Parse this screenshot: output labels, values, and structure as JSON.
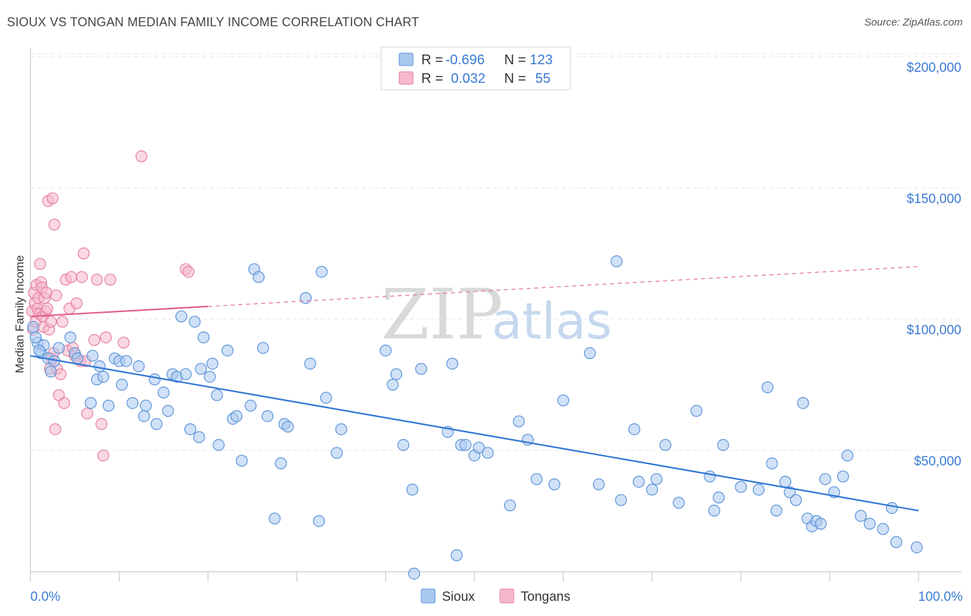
{
  "header": {
    "title": "SIOUX VS TONGAN MEDIAN FAMILY INCOME CORRELATION CHART",
    "source": "Source: ZipAtlas.com"
  },
  "watermark": {
    "zip": "ZIP",
    "atlas": "atlas"
  },
  "colors": {
    "sioux_fill": "#a9c8f0",
    "sioux_stroke": "#5b93d8",
    "sioux_line": "#2f76d2",
    "tongans_fill": "#f5b8ca",
    "tongans_stroke": "#e67ea0",
    "tongans_line": "#e0608c",
    "grid": "#e4e4e4",
    "tick_text": "#3a7bd5"
  },
  "legend": {
    "rows": [
      {
        "r_label": "R =",
        "r_value": "-0.696",
        "n_label": "N =",
        "n_value": "123"
      },
      {
        "r_label": "R =",
        "r_value": "0.032",
        "n_label": "N =",
        "n_value": "55"
      }
    ]
  },
  "bottom_legend": {
    "sioux": "Sioux",
    "tongans": "Tongans"
  },
  "chart_data": {
    "type": "scatter",
    "title": "SIOUX VS TONGAN MEDIAN FAMILY INCOME CORRELATION CHART",
    "xlabel": "",
    "ylabel": "Median Family Income",
    "xlim": [
      0,
      100
    ],
    "ylim": [
      0,
      210000
    ],
    "x_tick_labels": [
      "0.0%",
      "100.0%"
    ],
    "y_ticks": [
      50000,
      100000,
      150000,
      200000
    ],
    "y_tick_labels": [
      "$50,000",
      "$100,000",
      "$150,000",
      "$200,000"
    ],
    "series": [
      {
        "name": "Sioux",
        "r": -0.696,
        "n": 123,
        "trend": {
          "x": [
            0,
            100
          ],
          "y": [
            86000,
            27000
          ],
          "style": "solid"
        },
        "points": [
          [
            0.3,
            97000
          ],
          [
            0.8,
            91000
          ],
          [
            1.2,
            87000
          ],
          [
            1.5,
            90000
          ],
          [
            2.0,
            85000
          ],
          [
            2.3,
            80000
          ],
          [
            2.7,
            84000
          ],
          [
            3.2,
            89000
          ],
          [
            4.5,
            93000
          ],
          [
            5.0,
            87000
          ],
          [
            5.3,
            85000
          ],
          [
            6.8,
            68000
          ],
          [
            7.0,
            86000
          ],
          [
            7.5,
            77000
          ],
          [
            7.8,
            82000
          ],
          [
            8.2,
            78000
          ],
          [
            8.8,
            67000
          ],
          [
            9.5,
            85000
          ],
          [
            10.0,
            84000
          ],
          [
            10.3,
            75000
          ],
          [
            10.8,
            84000
          ],
          [
            11.5,
            68000
          ],
          [
            12.2,
            82000
          ],
          [
            12.8,
            63000
          ],
          [
            13.0,
            67000
          ],
          [
            14.2,
            60000
          ],
          [
            14.0,
            77000
          ],
          [
            15.0,
            72000
          ],
          [
            15.5,
            65000
          ],
          [
            16.0,
            79000
          ],
          [
            16.5,
            78000
          ],
          [
            17.0,
            101000
          ],
          [
            17.5,
            79000
          ],
          [
            18.0,
            58000
          ],
          [
            18.5,
            99000
          ],
          [
            19.0,
            55000
          ],
          [
            19.2,
            81000
          ],
          [
            19.5,
            93000
          ],
          [
            20.2,
            78000
          ],
          [
            20.5,
            83000
          ],
          [
            21.0,
            71000
          ],
          [
            21.2,
            52000
          ],
          [
            22.2,
            88000
          ],
          [
            22.8,
            62000
          ],
          [
            23.2,
            63000
          ],
          [
            23.8,
            46000
          ],
          [
            24.8,
            67000
          ],
          [
            25.2,
            119000
          ],
          [
            25.7,
            116000
          ],
          [
            26.2,
            89000
          ],
          [
            26.7,
            63000
          ],
          [
            27.5,
            24000
          ],
          [
            28.2,
            45000
          ],
          [
            28.6,
            60000
          ],
          [
            29.0,
            59000
          ],
          [
            31.0,
            108000
          ],
          [
            31.5,
            83000
          ],
          [
            32.5,
            23000
          ],
          [
            32.8,
            118000
          ],
          [
            33.3,
            70000
          ],
          [
            34.5,
            49000
          ],
          [
            35.0,
            58000
          ],
          [
            40.0,
            88000
          ],
          [
            40.8,
            75000
          ],
          [
            41.2,
            79000
          ],
          [
            42.0,
            52000
          ],
          [
            43.0,
            35000
          ],
          [
            43.2,
            3000
          ],
          [
            44.0,
            81000
          ],
          [
            47.0,
            57000
          ],
          [
            47.5,
            83000
          ],
          [
            48.0,
            10000
          ],
          [
            48.5,
            52000
          ],
          [
            49.0,
            52000
          ],
          [
            50.0,
            48000
          ],
          [
            50.5,
            51000
          ],
          [
            51.5,
            49000
          ],
          [
            54.0,
            29000
          ],
          [
            55.0,
            61000
          ],
          [
            56.0,
            54000
          ],
          [
            57.0,
            39000
          ],
          [
            59.0,
            37000
          ],
          [
            60.0,
            69000
          ],
          [
            63.0,
            87000
          ],
          [
            64.0,
            37000
          ],
          [
            66.0,
            122000
          ],
          [
            66.5,
            31000
          ],
          [
            68.0,
            58000
          ],
          [
            68.5,
            38000
          ],
          [
            70.0,
            35000
          ],
          [
            70.5,
            39000
          ],
          [
            71.5,
            52000
          ],
          [
            73.0,
            30000
          ],
          [
            75.0,
            65000
          ],
          [
            76.5,
            40000
          ],
          [
            77.0,
            27000
          ],
          [
            77.5,
            32000
          ],
          [
            78.0,
            52000
          ],
          [
            80.0,
            36000
          ],
          [
            82.0,
            35000
          ],
          [
            83.0,
            74000
          ],
          [
            83.5,
            45000
          ],
          [
            84.0,
            27000
          ],
          [
            85.0,
            38000
          ],
          [
            85.5,
            34000
          ],
          [
            86.2,
            31000
          ],
          [
            87.0,
            68000
          ],
          [
            87.5,
            24000
          ],
          [
            88.0,
            21000
          ],
          [
            88.5,
            23000
          ],
          [
            89.0,
            22000
          ],
          [
            89.5,
            39000
          ],
          [
            90.5,
            34000
          ],
          [
            91.5,
            40000
          ],
          [
            92.0,
            48000
          ],
          [
            93.5,
            25000
          ],
          [
            94.5,
            22000
          ],
          [
            96.0,
            20000
          ],
          [
            97.0,
            28000
          ],
          [
            97.5,
            15000
          ],
          [
            99.8,
            13000
          ],
          [
            0.6,
            93000
          ],
          [
            1.0,
            88000
          ]
        ]
      },
      {
        "name": "Tongans",
        "r": 0.032,
        "n": 55,
        "trend": {
          "x": [
            0,
            20
          ],
          "y": [
            101000,
            104800
          ],
          "style": "solid",
          "projection": {
            "x": [
              20,
              100
            ],
            "y": [
              104800,
              120000
            ],
            "style": "dashed"
          }
        },
        "points": [
          [
            0.2,
            103000
          ],
          [
            0.3,
            96000
          ],
          [
            0.4,
            110000
          ],
          [
            0.5,
            106000
          ],
          [
            0.6,
            99000
          ],
          [
            0.7,
            113000
          ],
          [
            0.8,
            104000
          ],
          [
            0.9,
            108000
          ],
          [
            1.0,
            102000
          ],
          [
            1.1,
            121000
          ],
          [
            1.2,
            114000
          ],
          [
            1.3,
            112000
          ],
          [
            1.4,
            101000
          ],
          [
            1.5,
            97000
          ],
          [
            1.6,
            108000
          ],
          [
            1.7,
            103000
          ],
          [
            1.8,
            110000
          ],
          [
            1.9,
            104000
          ],
          [
            2.0,
            145000
          ],
          [
            2.1,
            96000
          ],
          [
            2.2,
            81000
          ],
          [
            2.3,
            99000
          ],
          [
            2.4,
            85000
          ],
          [
            2.5,
            146000
          ],
          [
            2.6,
            87000
          ],
          [
            2.7,
            136000
          ],
          [
            2.8,
            58000
          ],
          [
            2.9,
            109000
          ],
          [
            3.0,
            81000
          ],
          [
            3.2,
            71000
          ],
          [
            3.4,
            79000
          ],
          [
            3.6,
            99000
          ],
          [
            3.8,
            68000
          ],
          [
            4.0,
            115000
          ],
          [
            4.2,
            88000
          ],
          [
            4.4,
            104000
          ],
          [
            4.6,
            116000
          ],
          [
            4.8,
            89000
          ],
          [
            5.0,
            86000
          ],
          [
            5.2,
            106000
          ],
          [
            5.6,
            84000
          ],
          [
            5.8,
            116000
          ],
          [
            6.0,
            125000
          ],
          [
            6.2,
            84000
          ],
          [
            6.4,
            64000
          ],
          [
            7.2,
            92000
          ],
          [
            7.5,
            115000
          ],
          [
            8.0,
            60000
          ],
          [
            8.2,
            48000
          ],
          [
            8.5,
            93000
          ],
          [
            9.0,
            115000
          ],
          [
            10.5,
            91000
          ],
          [
            12.5,
            162000
          ],
          [
            17.5,
            119000
          ],
          [
            17.8,
            118000
          ]
        ]
      }
    ]
  }
}
